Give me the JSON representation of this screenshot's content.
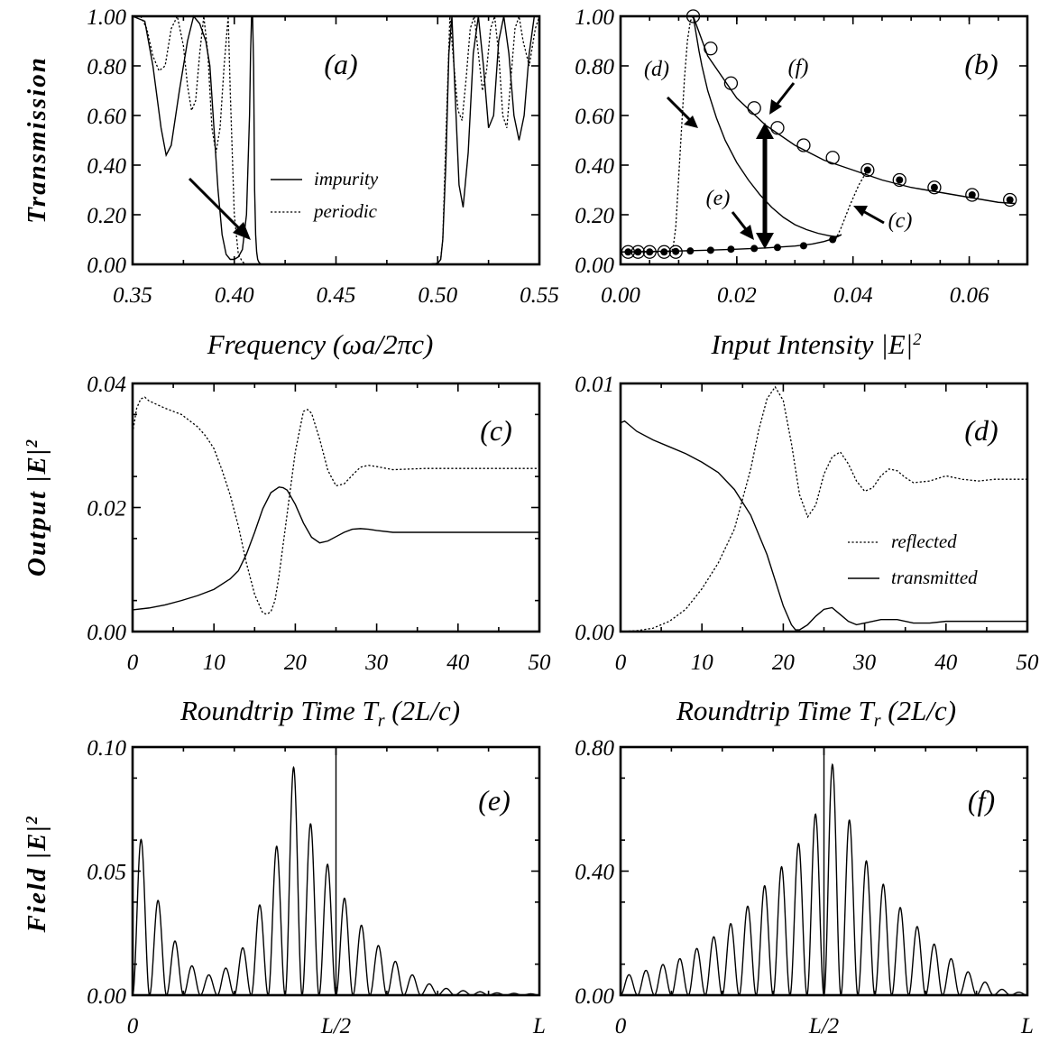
{
  "chart_data": [
    {
      "id": "a",
      "type": "line",
      "panel_label": "(a)",
      "xlabel": "Frequency (ωa/2πc)",
      "ylabel": "Transmission",
      "xlim": [
        0.35,
        0.55
      ],
      "ylim": [
        0.0,
        1.0
      ],
      "x_ticks": [
        "0.35",
        "0.40",
        "0.45",
        "0.50",
        "0.55"
      ],
      "y_ticks": [
        "0.00",
        "0.20",
        "0.40",
        "0.60",
        "0.80",
        "1.00"
      ],
      "legend": {
        "position": "center-right",
        "entries": [
          {
            "name": "impurity",
            "style": "solid"
          },
          {
            "name": "periodic",
            "style": "dotted"
          }
        ]
      },
      "series": [
        {
          "name": "impurity",
          "style": "solid",
          "x": [
            0.35,
            0.356,
            0.36,
            0.364,
            0.3665,
            0.369,
            0.373,
            0.377,
            0.38,
            0.383,
            0.386,
            0.388,
            0.39,
            0.392,
            0.394,
            0.396,
            0.398,
            0.4,
            0.402,
            0.404,
            0.406,
            0.4075,
            0.408,
            0.4085,
            0.409,
            0.4095,
            0.41,
            0.4105,
            0.411,
            0.4115,
            0.412,
            0.4125,
            0.413,
            0.414,
            0.416,
            0.42,
            0.44,
            0.46,
            0.48,
            0.495,
            0.5,
            0.5015,
            0.5025,
            0.504,
            0.5055,
            0.507,
            0.5085,
            0.5105,
            0.5125,
            0.515,
            0.5175,
            0.52,
            0.5225,
            0.525,
            0.5275,
            0.53,
            0.5325,
            0.535,
            0.5375,
            0.54,
            0.5425,
            0.545,
            0.5475,
            0.55
          ],
          "y": [
            1.0,
            0.98,
            0.8,
            0.55,
            0.44,
            0.48,
            0.7,
            0.9,
            1.0,
            0.97,
            0.9,
            0.8,
            0.55,
            0.3,
            0.12,
            0.04,
            0.02,
            0.02,
            0.03,
            0.06,
            0.2,
            0.6,
            0.85,
            1.0,
            1.0,
            0.8,
            0.3,
            0.12,
            0.05,
            0.02,
            0.01,
            0.005,
            0.002,
            0.0,
            0.0,
            0.0,
            0.0,
            0.0,
            0.0,
            0.0,
            0.004,
            0.02,
            0.1,
            0.4,
            0.85,
            1.0,
            0.7,
            0.32,
            0.23,
            0.45,
            0.85,
            1.0,
            0.8,
            0.55,
            0.6,
            0.9,
            1.0,
            0.85,
            0.6,
            0.5,
            0.6,
            0.85,
            1.0,
            1.0
          ]
        },
        {
          "name": "periodic",
          "style": "dotted",
          "x": [
            0.35,
            0.354,
            0.357,
            0.36,
            0.363,
            0.366,
            0.369,
            0.372,
            0.375,
            0.377,
            0.379,
            0.381,
            0.383,
            0.385,
            0.387,
            0.389,
            0.391,
            0.393,
            0.395,
            0.397,
            0.398,
            0.4,
            0.402,
            0.404,
            0.406,
            0.4075,
            0.41,
            0.42,
            0.44,
            0.46,
            0.48,
            0.495,
            0.5,
            0.5015,
            0.5025,
            0.504,
            0.506,
            0.508,
            0.51,
            0.512,
            0.514,
            0.516,
            0.518,
            0.52,
            0.522,
            0.524,
            0.526,
            0.528,
            0.53,
            0.532,
            0.534,
            0.536,
            0.538,
            0.54,
            0.542,
            0.545,
            0.548,
            0.55
          ],
          "y": [
            1.0,
            1.0,
            0.95,
            0.84,
            0.78,
            0.8,
            0.95,
            1.0,
            0.88,
            0.72,
            0.62,
            0.66,
            0.85,
            1.0,
            0.85,
            0.55,
            0.45,
            0.55,
            0.8,
            1.0,
            0.7,
            0.2,
            0.04,
            0.01,
            0.0,
            0.0,
            0.0,
            0.0,
            0.0,
            0.0,
            0.0,
            0.0,
            0.005,
            0.02,
            0.1,
            0.5,
            1.0,
            0.8,
            0.62,
            0.58,
            0.75,
            0.95,
            1.0,
            0.85,
            0.7,
            0.78,
            0.95,
            1.0,
            0.85,
            0.6,
            0.55,
            0.75,
            0.95,
            1.0,
            0.9,
            0.8,
            0.95,
            1.0
          ]
        }
      ]
    },
    {
      "id": "b",
      "type": "line",
      "panel_label": "(b)",
      "xlabel": "Input Intensity |E|²",
      "ylabel": "",
      "xlim": [
        0.0,
        0.07
      ],
      "ylim": [
        0.0,
        1.0
      ],
      "x_ticks": [
        "0.00",
        "0.02",
        "0.04",
        "0.06"
      ],
      "y_ticks": [
        "0.00",
        "0.20",
        "0.40",
        "0.60",
        "0.80",
        "1.00"
      ],
      "annotations": [
        "(d)",
        "(e)",
        "(f)",
        "(c)"
      ],
      "series": [
        {
          "style": "solid",
          "role": "upper branch",
          "x": [
            0.0125,
            0.015,
            0.02,
            0.025,
            0.03,
            0.035,
            0.04,
            0.045,
            0.05,
            0.055,
            0.06,
            0.065,
            0.068
          ],
          "y": [
            1.0,
            0.84,
            0.67,
            0.56,
            0.48,
            0.42,
            0.38,
            0.34,
            0.31,
            0.29,
            0.27,
            0.25,
            0.245
          ]
        },
        {
          "style": "solid",
          "role": "middle branch",
          "x": [
            0.0125,
            0.013,
            0.0135,
            0.014,
            0.015,
            0.0165,
            0.018,
            0.02,
            0.022,
            0.024,
            0.026,
            0.028,
            0.03,
            0.032,
            0.034,
            0.036,
            0.037,
            0.0378,
            0.038
          ],
          "y": [
            1.0,
            0.93,
            0.86,
            0.8,
            0.7,
            0.59,
            0.5,
            0.41,
            0.34,
            0.28,
            0.23,
            0.19,
            0.16,
            0.14,
            0.125,
            0.115,
            0.112,
            0.117,
            0.12
          ]
        },
        {
          "style": "solid",
          "role": "lower branch",
          "x": [
            0.0,
            0.005,
            0.01,
            0.015,
            0.02,
            0.025,
            0.03,
            0.033,
            0.035,
            0.0365,
            0.0375,
            0.038
          ],
          "y": [
            0.05,
            0.052,
            0.054,
            0.057,
            0.061,
            0.066,
            0.074,
            0.082,
            0.092,
            0.103,
            0.113,
            0.12
          ]
        },
        {
          "style": "dotted",
          "role": "switch-up (d)",
          "x": [
            0.0,
            0.008,
            0.009,
            0.0095,
            0.01,
            0.0105,
            0.011,
            0.0115,
            0.012,
            0.0125
          ],
          "y": [
            0.05,
            0.05,
            0.06,
            0.15,
            0.35,
            0.55,
            0.75,
            0.9,
            0.98,
            1.0
          ]
        },
        {
          "style": "dotted",
          "role": "switch-up (c)",
          "x": [
            0.037,
            0.038,
            0.0395,
            0.041,
            0.0425
          ],
          "y": [
            0.1,
            0.15,
            0.24,
            0.32,
            0.38
          ]
        },
        {
          "style": "open-circle",
          "role": "simulation (upper)",
          "x": [
            0.0013,
            0.003,
            0.005,
            0.0075,
            0.0095,
            0.0125,
            0.0155,
            0.019,
            0.023,
            0.027,
            0.0315,
            0.0365
          ],
          "y": [
            0.05,
            0.05,
            0.05,
            0.05,
            0.05,
            1.0,
            0.87,
            0.73,
            0.63,
            0.55,
            0.48,
            0.43
          ]
        },
        {
          "style": "filled-circle",
          "role": "simulation (lower)",
          "x": [
            0.0013,
            0.003,
            0.005,
            0.0075,
            0.0095,
            0.012,
            0.0155,
            0.019,
            0.023,
            0.027,
            0.0315,
            0.0365
          ],
          "y": [
            0.05,
            0.05,
            0.05,
            0.05,
            0.052,
            0.054,
            0.057,
            0.061,
            0.064,
            0.068,
            0.075,
            0.1
          ]
        },
        {
          "style": "circled-dot",
          "role": "simulation (both)",
          "x": [
            0.0425,
            0.048,
            0.054,
            0.0605,
            0.067
          ],
          "y": [
            0.38,
            0.34,
            0.31,
            0.28,
            0.26
          ]
        }
      ]
    },
    {
      "id": "c",
      "type": "line",
      "panel_label": "(c)",
      "xlabel": "Roundtrip Time T_r (2L/c)",
      "ylabel": "Output |E|²",
      "xlim": [
        0,
        50
      ],
      "ylim": [
        0.0,
        0.04
      ],
      "x_ticks": [
        "0",
        "10",
        "20",
        "30",
        "40",
        "50"
      ],
      "y_ticks": [
        "0.00",
        "0.02",
        "0.04"
      ],
      "series": [
        {
          "style": "dotted",
          "role": "reflected",
          "x": [
            0,
            0.5,
            1,
            1.5,
            2,
            4,
            6,
            8,
            9,
            10,
            11,
            12,
            13,
            14,
            15,
            16,
            16.5,
            17,
            17.5,
            18,
            19,
            20,
            21,
            21.5,
            22,
            23,
            24,
            25,
            26,
            27,
            28,
            29,
            30,
            32,
            34,
            36,
            38,
            40,
            45,
            50
          ],
          "y": [
            0.032,
            0.036,
            0.0375,
            0.0378,
            0.0372,
            0.036,
            0.035,
            0.033,
            0.0315,
            0.0295,
            0.026,
            0.022,
            0.017,
            0.011,
            0.006,
            0.003,
            0.0028,
            0.0032,
            0.005,
            0.009,
            0.019,
            0.029,
            0.0355,
            0.0358,
            0.0352,
            0.031,
            0.026,
            0.0235,
            0.0238,
            0.0252,
            0.0265,
            0.0268,
            0.0266,
            0.0261,
            0.0262,
            0.0263,
            0.0263,
            0.0263,
            0.0263,
            0.0263
          ]
        },
        {
          "style": "solid",
          "role": "transmitted",
          "x": [
            0,
            2,
            4,
            6,
            8,
            10,
            12,
            13,
            14,
            15,
            16,
            17,
            18,
            18.5,
            19,
            20,
            21,
            22,
            23,
            24,
            25,
            26,
            27,
            28,
            29,
            30,
            32,
            34,
            36,
            40,
            45,
            50
          ],
          "y": [
            0.0035,
            0.0038,
            0.0043,
            0.005,
            0.0058,
            0.0068,
            0.0085,
            0.0098,
            0.0125,
            0.016,
            0.0198,
            0.0224,
            0.0233,
            0.0232,
            0.0228,
            0.0205,
            0.0175,
            0.0152,
            0.0143,
            0.0146,
            0.0153,
            0.016,
            0.0165,
            0.0166,
            0.0165,
            0.0163,
            0.016,
            0.016,
            0.016,
            0.016,
            0.016,
            0.016
          ]
        }
      ]
    },
    {
      "id": "d",
      "type": "line",
      "panel_label": "(d)",
      "xlabel": "Roundtrip Time T_r (2L/c)",
      "ylabel": "",
      "xlim": [
        0,
        50
      ],
      "ylim": [
        0.0,
        0.0145
      ],
      "x_ticks": [
        "0",
        "10",
        "20",
        "30",
        "40",
        "50"
      ],
      "y_ticks": [
        "0.00",
        "0.01"
      ],
      "legend": {
        "position": "lower-right",
        "entries": [
          {
            "name": "reflected",
            "style": "dotted"
          },
          {
            "name": "transmitted",
            "style": "solid"
          }
        ]
      },
      "series": [
        {
          "name": "reflected",
          "style": "dotted",
          "x": [
            0,
            2,
            4,
            6,
            8,
            10,
            12,
            14,
            16,
            17,
            18,
            19,
            20,
            21,
            22,
            23,
            24,
            25,
            26,
            27,
            28,
            29,
            30,
            31,
            32,
            33,
            34,
            35,
            36,
            38,
            40,
            42,
            44,
            46,
            48,
            50
          ],
          "y": [
            0.0,
            5e-05,
            0.0002,
            0.0006,
            0.0013,
            0.0025,
            0.004,
            0.006,
            0.0095,
            0.0118,
            0.0136,
            0.0143,
            0.0135,
            0.011,
            0.008,
            0.0067,
            0.0074,
            0.0092,
            0.0102,
            0.0105,
            0.0098,
            0.0088,
            0.0082,
            0.0084,
            0.0091,
            0.0095,
            0.0094,
            0.009,
            0.0087,
            0.0088,
            0.0091,
            0.0089,
            0.0088,
            0.0089,
            0.0089,
            0.0089
          ]
        },
        {
          "name": "transmitted",
          "style": "solid",
          "x": [
            0,
            0.5,
            1,
            2,
            4,
            6,
            8,
            10,
            12,
            14,
            16,
            18,
            19,
            20,
            21,
            21.5,
            22,
            23,
            24,
            25,
            26,
            27,
            28,
            29,
            30,
            32,
            34,
            36,
            38,
            40,
            45,
            50
          ],
          "y": [
            0.0122,
            0.0123,
            0.0121,
            0.0117,
            0.0112,
            0.0108,
            0.0104,
            0.0099,
            0.0093,
            0.0083,
            0.0068,
            0.0045,
            0.003,
            0.0015,
            0.0004,
            0.0001,
            0.0001,
            0.0004,
            0.0009,
            0.0013,
            0.0014,
            0.001,
            0.0006,
            0.0004,
            0.0005,
            0.0007,
            0.0007,
            0.0005,
            0.0005,
            0.0006,
            0.0006,
            0.0006
          ]
        }
      ]
    },
    {
      "id": "e",
      "type": "line",
      "panel_label": "(e)",
      "xlabel": "",
      "ylabel": "Field |E|²",
      "xlim": [
        0,
        1
      ],
      "ylim": [
        0.0,
        0.11
      ],
      "x_ticks": [
        "0",
        "L/2",
        "L"
      ],
      "y_ticks": [
        "0.00",
        "0.05",
        "0.10"
      ],
      "series": [
        {
          "style": "solid",
          "role": "field intensity peak envelope",
          "num_peaks": 24,
          "peaks": [
            0.069,
            0.042,
            0.024,
            0.013,
            0.009,
            0.012,
            0.021,
            0.04,
            0.066,
            0.101,
            0.076,
            0.058,
            0.043,
            0.031,
            0.022,
            0.015,
            0.009,
            0.005,
            0.003,
            0.002,
            0.0015,
            0.001,
            0.0008,
            0.0006
          ],
          "center_spike": 0.11
        }
      ]
    },
    {
      "id": "f",
      "type": "line",
      "panel_label": "(f)",
      "xlabel": "",
      "ylabel": "",
      "xlim": [
        0,
        1
      ],
      "ylim": [
        0.0,
        0.85
      ],
      "x_ticks": [
        "0",
        "L/2",
        "L"
      ],
      "y_ticks": [
        "0.00",
        "0.40",
        "0.80"
      ],
      "series": [
        {
          "style": "solid",
          "role": "field intensity peak envelope",
          "num_peaks": 24,
          "peaks": [
            0.07,
            0.085,
            0.105,
            0.125,
            0.16,
            0.2,
            0.245,
            0.305,
            0.375,
            0.44,
            0.52,
            0.62,
            0.79,
            0.6,
            0.46,
            0.38,
            0.3,
            0.235,
            0.175,
            0.125,
            0.08,
            0.045,
            0.02,
            0.01
          ],
          "center_spike": 0.85
        }
      ]
    }
  ]
}
